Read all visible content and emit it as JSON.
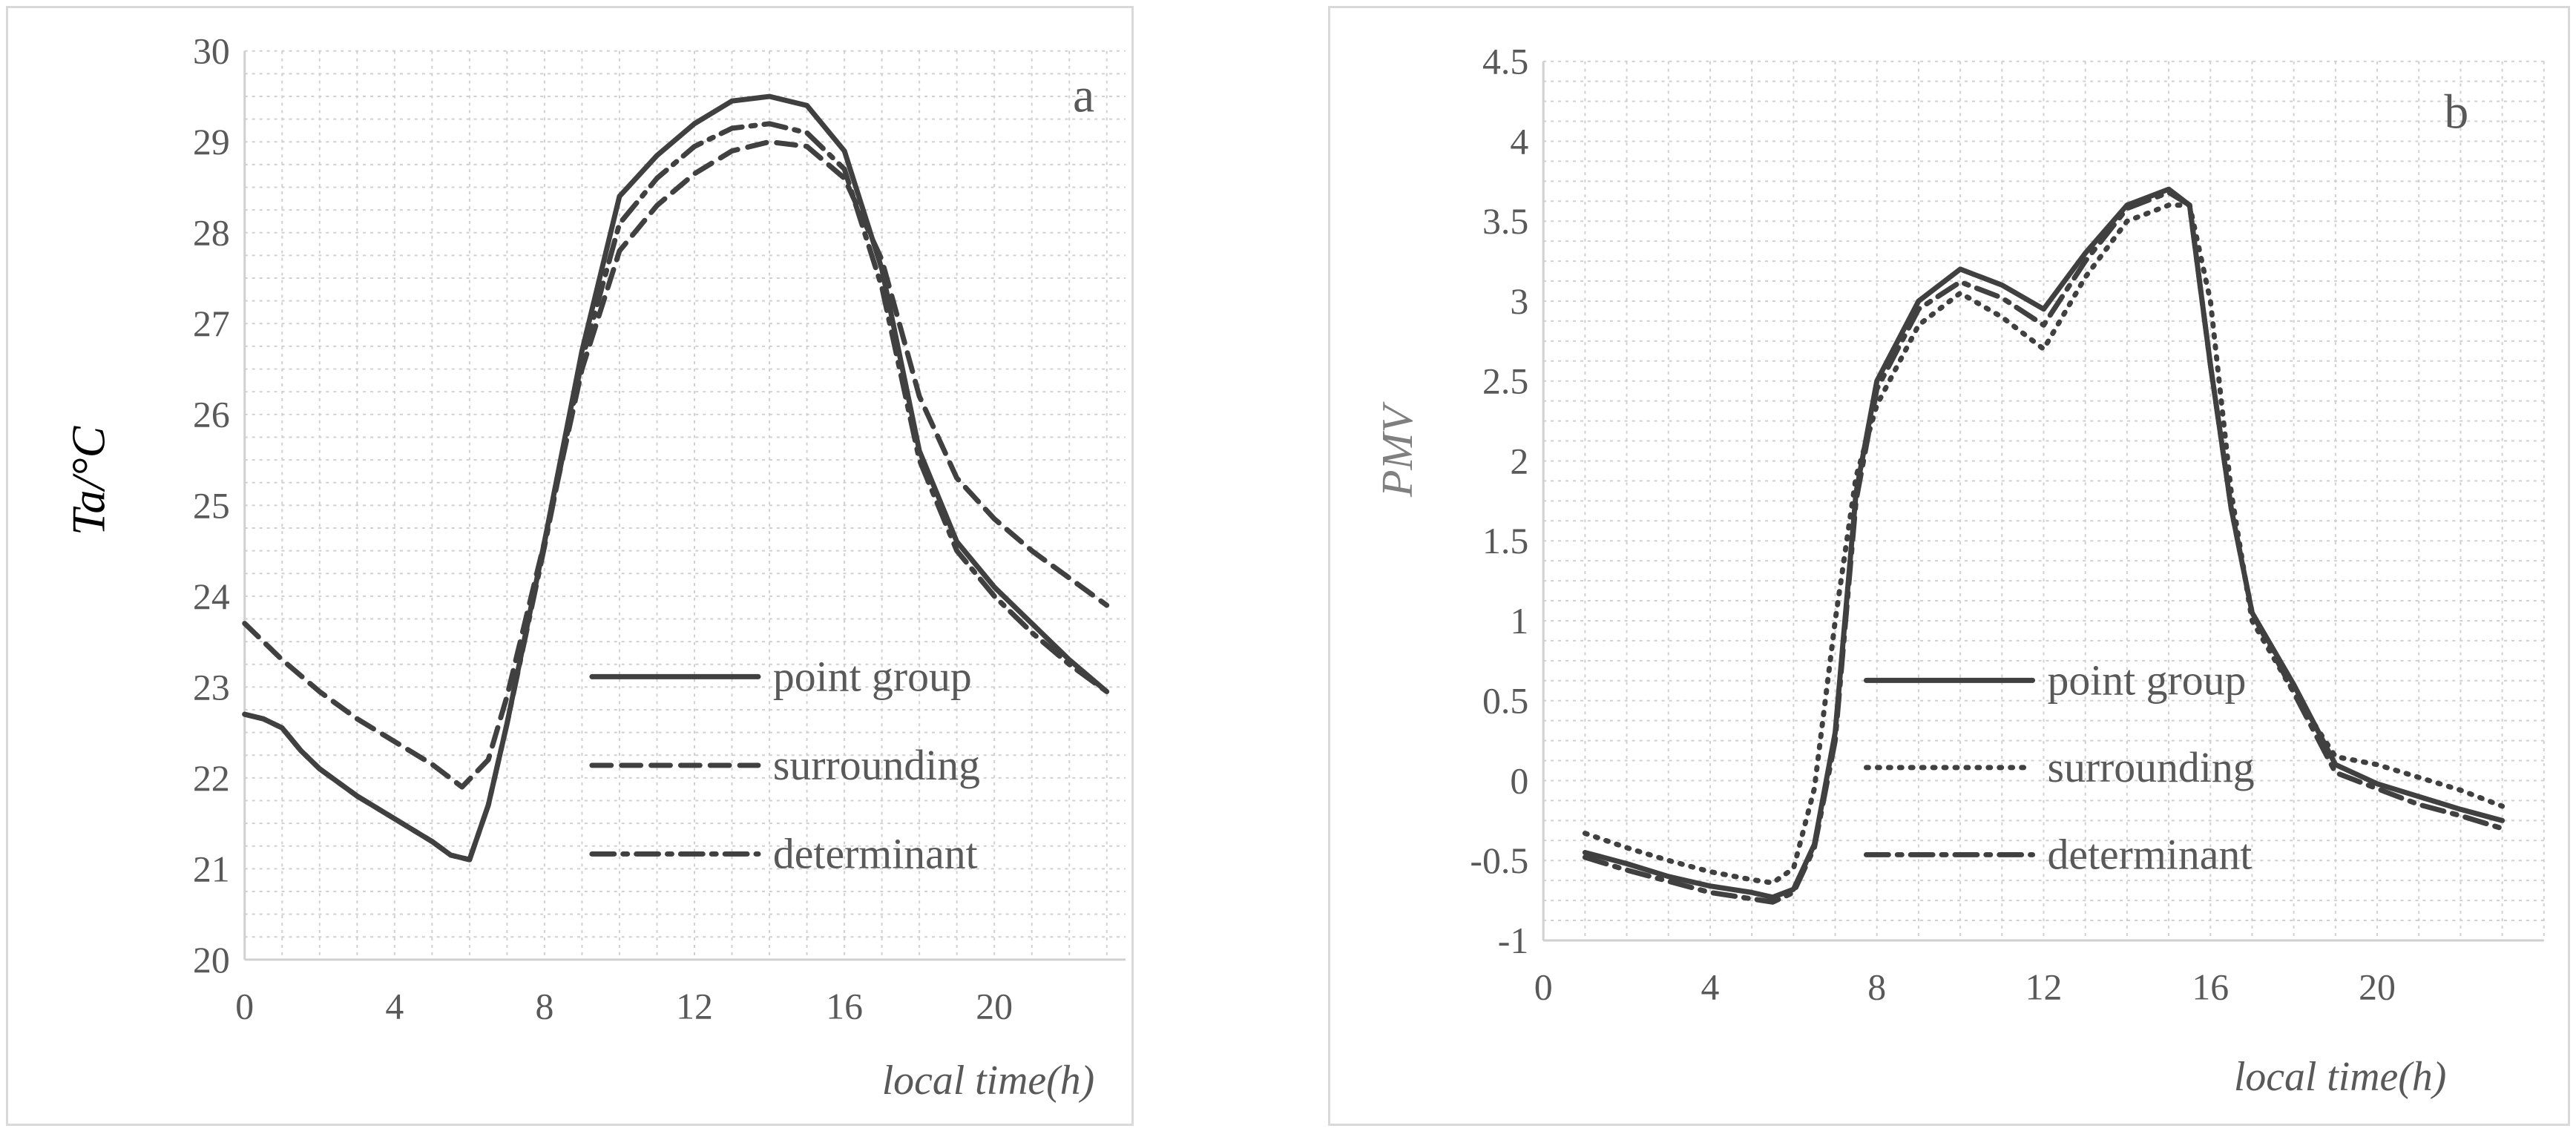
{
  "chart_data": [
    {
      "type": "line",
      "panel_label": "a",
      "title": "",
      "xlabel": "local time(h)",
      "ylabel": "Ta/°C",
      "xlim": [
        0,
        23.5
      ],
      "ylim": [
        20,
        30
      ],
      "xticks": [
        0,
        4,
        8,
        12,
        16,
        20
      ],
      "yticks": [
        20,
        21,
        22,
        23,
        24,
        25,
        26,
        27,
        28,
        29,
        30
      ],
      "grid": true,
      "legend_position": "center-right",
      "series": [
        {
          "name": "point group",
          "style": "solid",
          "x": [
            0,
            0.5,
            1,
            1.5,
            2,
            3,
            4,
            5,
            5.5,
            6,
            6.5,
            7,
            8,
            9,
            10,
            11,
            12,
            13,
            14,
            15,
            16,
            17,
            18,
            19,
            20,
            21,
            22,
            23
          ],
          "y": [
            22.7,
            22.65,
            22.55,
            22.3,
            22.1,
            21.8,
            21.55,
            21.3,
            21.15,
            21.1,
            21.7,
            22.6,
            24.6,
            26.7,
            28.4,
            28.85,
            29.2,
            29.45,
            29.5,
            29.4,
            28.9,
            27.6,
            25.6,
            24.6,
            24.1,
            23.7,
            23.3,
            22.95
          ]
        },
        {
          "name": "surrounding",
          "style": "dashed",
          "x": [
            0,
            1,
            2,
            3,
            4,
            5,
            5.8,
            6.5,
            7,
            8,
            9,
            10,
            11,
            12,
            13,
            14,
            15,
            16,
            17,
            18,
            19,
            20,
            21,
            22,
            23
          ],
          "y": [
            23.7,
            23.3,
            22.95,
            22.65,
            22.4,
            22.15,
            21.9,
            22.2,
            22.9,
            24.6,
            26.5,
            27.8,
            28.3,
            28.65,
            28.9,
            29.0,
            28.95,
            28.6,
            27.7,
            26.2,
            25.3,
            24.85,
            24.5,
            24.2,
            23.9
          ]
        },
        {
          "name": "determinant",
          "style": "dashdot",
          "x": [
            0,
            0.5,
            1,
            1.5,
            2,
            3,
            4,
            5,
            5.5,
            6,
            6.5,
            7,
            8,
            9,
            10,
            11,
            12,
            13,
            14,
            15,
            16,
            17,
            18,
            19,
            20,
            21,
            22,
            23
          ],
          "y": [
            22.7,
            22.65,
            22.55,
            22.3,
            22.1,
            21.8,
            21.55,
            21.3,
            21.15,
            21.1,
            21.7,
            22.6,
            24.55,
            26.6,
            28.1,
            28.6,
            28.95,
            29.15,
            29.2,
            29.1,
            28.7,
            27.4,
            25.5,
            24.5,
            24.0,
            23.6,
            23.25,
            22.95
          ]
        }
      ]
    },
    {
      "type": "line",
      "panel_label": "b",
      "title": "",
      "xlabel": "local time(h)",
      "ylabel": "PMV",
      "xlim": [
        0,
        24
      ],
      "ylim": [
        -1,
        4.5
      ],
      "xticks": [
        0,
        4,
        8,
        12,
        16,
        20
      ],
      "yticks": [
        -1,
        -0.5,
        0,
        0.5,
        1,
        1.5,
        2,
        2.5,
        3,
        3.5,
        4,
        4.5
      ],
      "grid": true,
      "legend_position": "center-right",
      "series": [
        {
          "name": "point group",
          "style": "solid",
          "x": [
            1,
            2,
            3,
            4,
            5,
            5.5,
            6,
            6.5,
            7,
            7.5,
            8,
            9,
            10,
            11,
            12,
            13,
            14,
            15,
            15.5,
            16,
            16.5,
            17,
            18,
            19,
            20,
            21,
            22,
            23
          ],
          "y": [
            -0.45,
            -0.52,
            -0.6,
            -0.66,
            -0.7,
            -0.73,
            -0.68,
            -0.4,
            0.3,
            1.8,
            2.5,
            3.0,
            3.2,
            3.1,
            2.95,
            3.3,
            3.6,
            3.7,
            3.6,
            2.6,
            1.7,
            1.05,
            0.6,
            0.1,
            -0.02,
            -0.1,
            -0.18,
            -0.25
          ]
        },
        {
          "name": "surrounding",
          "style": "dotted",
          "x": [
            1,
            2,
            3,
            4,
            5,
            5.5,
            6,
            6.5,
            7,
            7.5,
            8,
            9,
            10,
            11,
            12,
            13,
            14,
            15,
            15.5,
            16,
            16.5,
            17,
            18,
            19,
            20,
            21,
            22,
            23
          ],
          "y": [
            -0.33,
            -0.42,
            -0.5,
            -0.57,
            -0.62,
            -0.64,
            -0.55,
            -0.05,
            1.0,
            1.9,
            2.35,
            2.85,
            3.05,
            2.9,
            2.7,
            3.15,
            3.5,
            3.6,
            3.6,
            3.0,
            1.8,
            1.0,
            0.55,
            0.15,
            0.1,
            0.02,
            -0.06,
            -0.16
          ]
        },
        {
          "name": "determinant",
          "style": "dashdot",
          "x": [
            1,
            2,
            3,
            4,
            5,
            5.5,
            6,
            6.5,
            7,
            7.5,
            8,
            9,
            10,
            11,
            12,
            13,
            14,
            15,
            15.5,
            16,
            16.5,
            17,
            18,
            19,
            20,
            21,
            22,
            23
          ],
          "y": [
            -0.48,
            -0.56,
            -0.63,
            -0.7,
            -0.74,
            -0.76,
            -0.7,
            -0.42,
            0.25,
            1.75,
            2.45,
            2.95,
            3.12,
            3.02,
            2.85,
            3.25,
            3.58,
            3.68,
            3.6,
            2.6,
            1.7,
            1.05,
            0.55,
            0.05,
            -0.05,
            -0.15,
            -0.22,
            -0.3
          ]
        }
      ]
    }
  ]
}
